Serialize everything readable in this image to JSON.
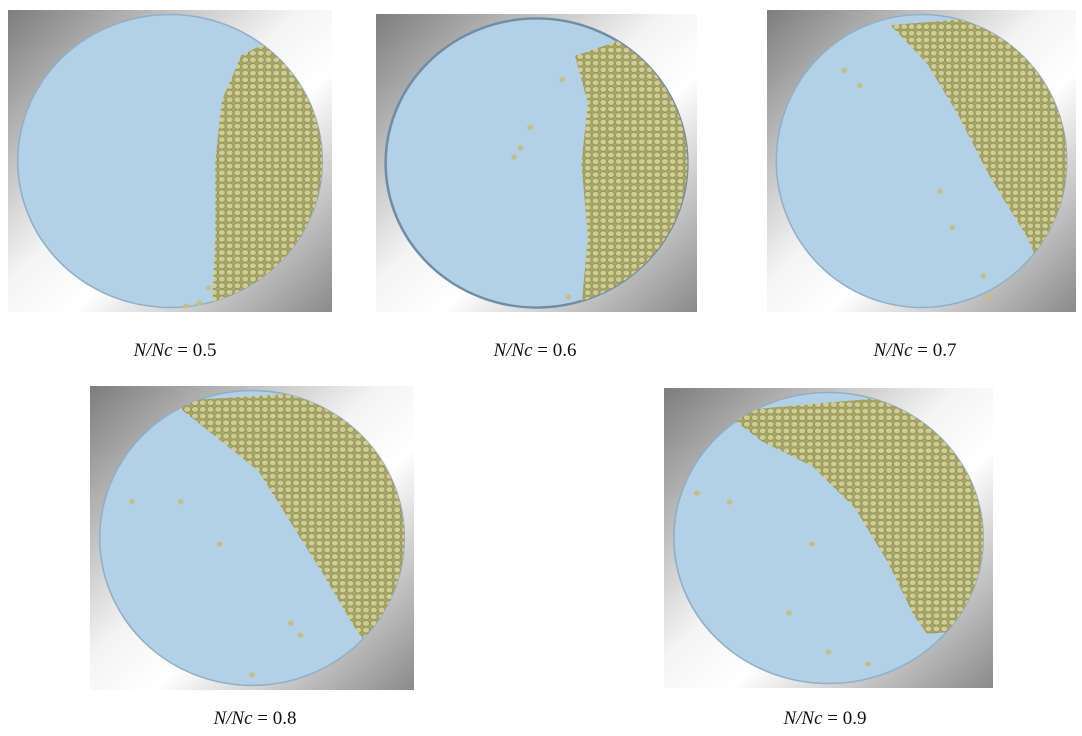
{
  "figure": {
    "panels": [
      {
        "symbol": "N/Nc",
        "value_text": "= 0.5"
      },
      {
        "symbol": "N/Nc",
        "value_text": "= 0.6"
      },
      {
        "symbol": "N/Nc",
        "value_text": "= 0.7"
      },
      {
        "symbol": "N/Nc",
        "value_text": "= 0.8"
      },
      {
        "symbol": "N/Nc",
        "value_text": "= 0.9"
      }
    ]
  }
}
